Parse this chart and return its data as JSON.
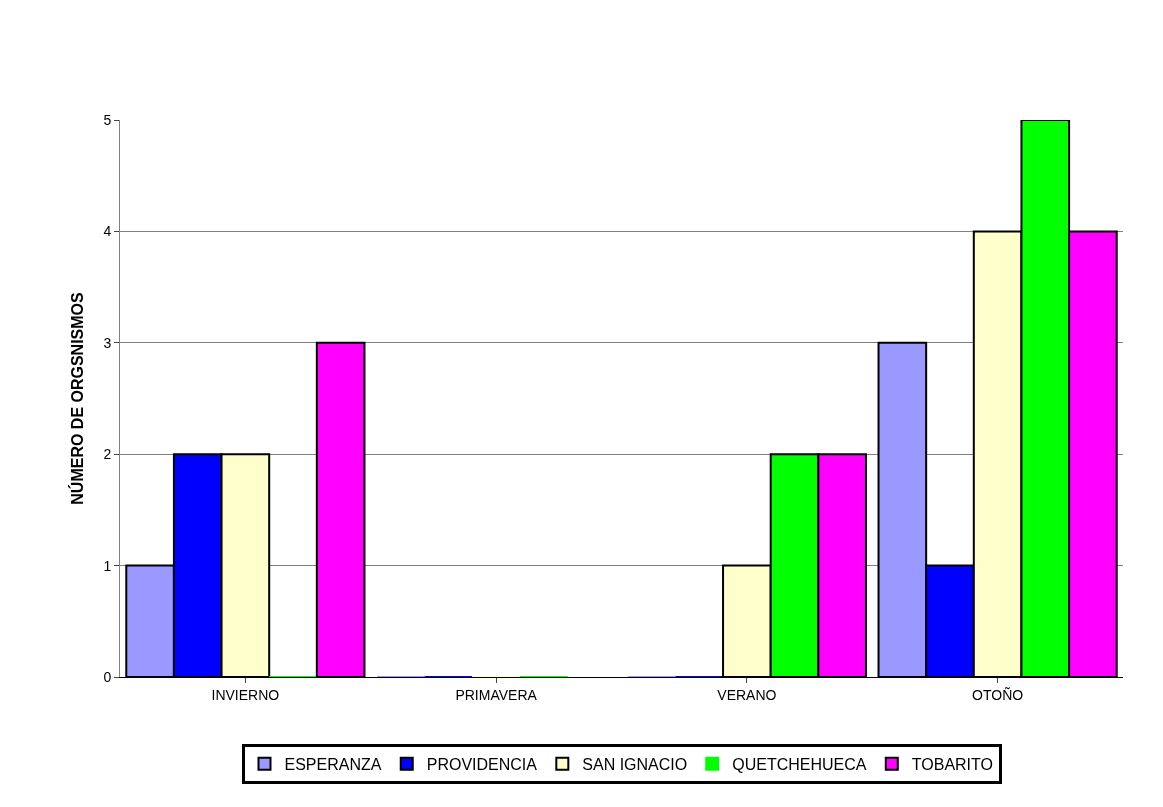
{
  "chart_data": {
    "type": "bar",
    "ylabel": "NÚMERO DE ORGSNISMOS",
    "categories": [
      "INVIERNO",
      "PRIMAVERA",
      "VERANO",
      "OTOÑO"
    ],
    "series": [
      {
        "name": "ESPERANZA",
        "color": "#9999ff",
        "values": [
          1,
          0,
          0,
          3
        ]
      },
      {
        "name": "PROVIDENCIA",
        "color": "#0000ff",
        "values": [
          2,
          0,
          0,
          1
        ]
      },
      {
        "name": "SAN IGNACIO",
        "color": "#ffffcc",
        "values": [
          2,
          0,
          1,
          4
        ]
      },
      {
        "name": "QUETCHEHUECA",
        "color": "#00ff00",
        "values": [
          0,
          0,
          2,
          5
        ]
      },
      {
        "name": "TOBARITO",
        "color": "#ff00ff",
        "values": [
          3,
          null,
          2,
          4
        ]
      }
    ],
    "ylim": [
      0,
      5
    ],
    "yticks": [
      0,
      1,
      2,
      3,
      4,
      5
    ],
    "grid": "y",
    "legend": "bottom"
  }
}
